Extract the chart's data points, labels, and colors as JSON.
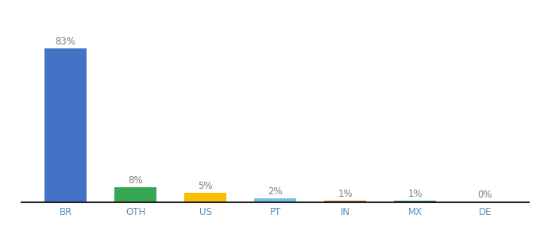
{
  "categories": [
    "BR",
    "OTH",
    "US",
    "PT",
    "IN",
    "MX",
    "DE"
  ],
  "values": [
    83,
    8,
    5,
    2,
    1,
    1,
    0.3
  ],
  "labels": [
    "83%",
    "8%",
    "5%",
    "2%",
    "1%",
    "1%",
    "0%"
  ],
  "bar_colors": [
    "#4472C4",
    "#34A853",
    "#FBBC04",
    "#74C0E8",
    "#B7521A",
    "#2E7D32",
    "#9E9E9E"
  ],
  "background_color": "#ffffff",
  "ylim": [
    0,
    100
  ],
  "bar_width": 0.6,
  "label_fontsize": 8.5,
  "tick_fontsize": 8.5,
  "tick_color": "#5B8DB8",
  "label_color": "#7B7B7B"
}
